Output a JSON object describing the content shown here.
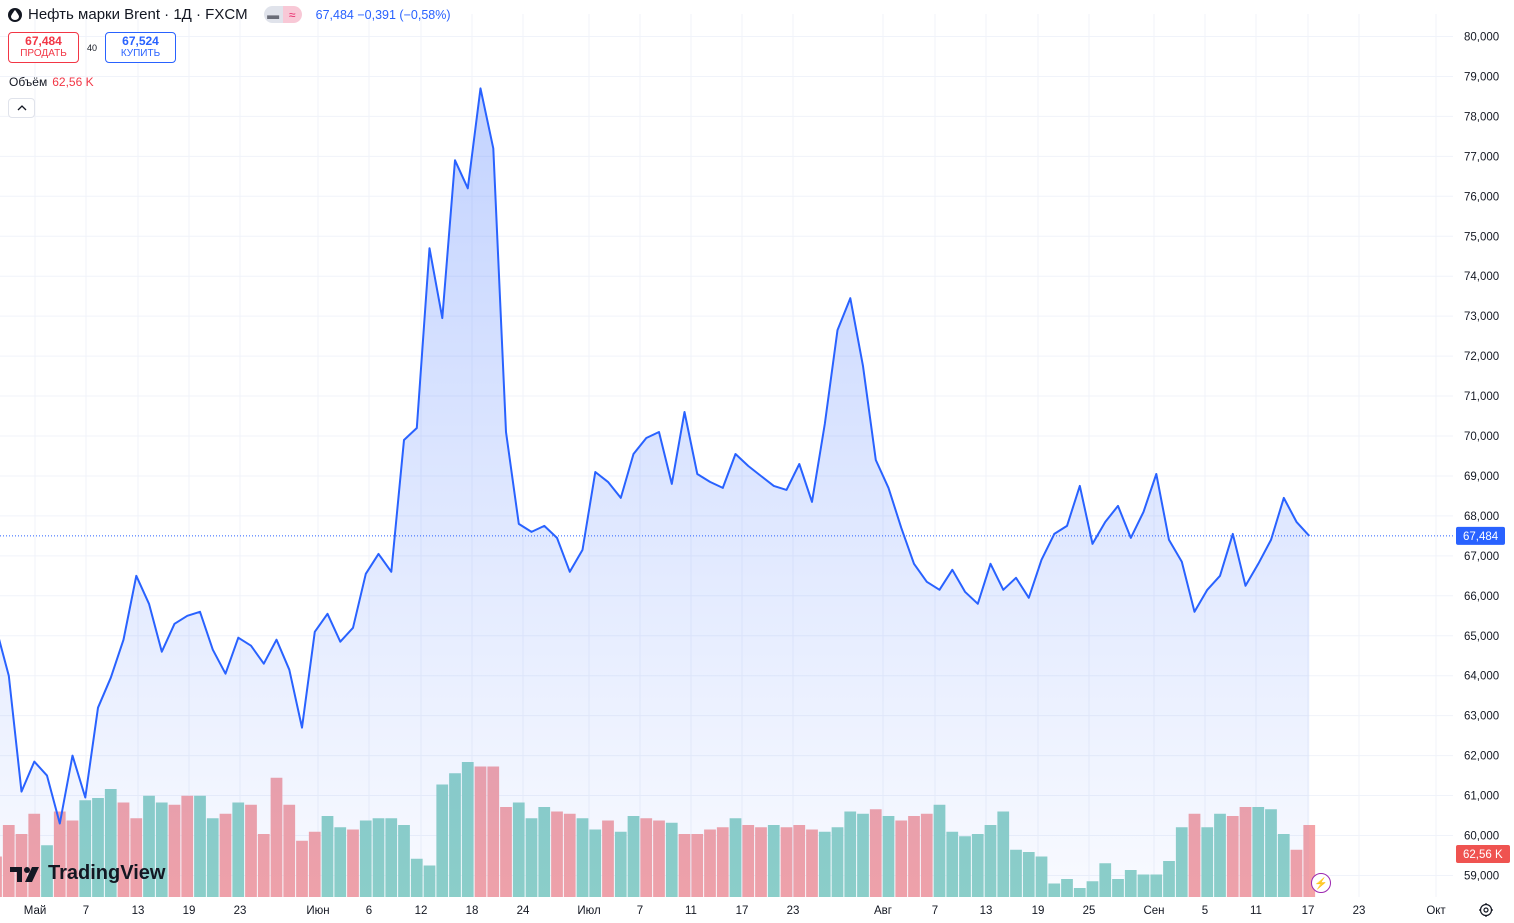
{
  "header": {
    "title": "Нефть марки Brent · 1Д · FXCM",
    "last_price": "67,484",
    "change": "−0,391 (−0,58%)",
    "icons": [
      "oil-drop-icon",
      "minus-icon",
      "approx-icon"
    ]
  },
  "trade": {
    "sell_price": "67,484",
    "sell_label": "ПРОДАТЬ",
    "spread": "40",
    "buy_price": "67,524",
    "buy_label": "КУПИТЬ"
  },
  "volume": {
    "label": "Объём",
    "value": "62,56 K"
  },
  "logo": {
    "text": "TradingView"
  },
  "colors": {
    "line": "#2962ff",
    "vol_up": "#8ed1c7",
    "vol_down": "#f4a3a7",
    "price_label_bg": "#2962ff",
    "volume_label_bg": "#ef5350"
  },
  "chart_data": {
    "type": "area",
    "title": "Нефть марки Brent · 1Д · FXCM",
    "ylim": [
      58600,
      80200
    ],
    "y_ticks": [
      "80,000",
      "79,000",
      "78,000",
      "77,000",
      "76,000",
      "75,000",
      "74,000",
      "73,000",
      "72,000",
      "71,000",
      "70,000",
      "69,000",
      "68,000",
      "67,000",
      "66,000",
      "65,000",
      "64,000",
      "63,000",
      "62,000",
      "61,000",
      "60,000",
      "59,000"
    ],
    "x_ticks": [
      "Май",
      "7",
      "13",
      "19",
      "23",
      "Июн",
      "6",
      "12",
      "18",
      "24",
      "Июл",
      "7",
      "11",
      "17",
      "23",
      "Авг",
      "7",
      "13",
      "19",
      "25",
      "Сен",
      "5",
      "11",
      "17",
      "23",
      "Окт"
    ],
    "price_label": "67,484",
    "volume_label": "62,56 K",
    "close": [
      65200,
      64000,
      61100,
      61850,
      61500,
      60300,
      62000,
      60950,
      63200,
      63950,
      64900,
      66500,
      65800,
      64600,
      65300,
      65500,
      65600,
      64650,
      64050,
      64950,
      64750,
      64300,
      64900,
      64150,
      62700,
      65100,
      65550,
      64850,
      65200,
      66550,
      67050,
      66600,
      69900,
      70200,
      74700,
      72950,
      76900,
      76200,
      78700,
      77200,
      70100,
      67800,
      67600,
      67750,
      67450,
      66600,
      67150,
      69100,
      68850,
      68450,
      69550,
      69950,
      70100,
      68800,
      70600,
      69050,
      68850,
      68700,
      69550,
      69250,
      69000,
      68750,
      68650,
      69300,
      68350,
      70300,
      72650,
      73450,
      71750,
      69400,
      68700,
      67700,
      66800,
      66350,
      66150,
      66650,
      66100,
      65800,
      66800,
      66150,
      66450,
      65950,
      66900,
      67550,
      67750,
      68750,
      67300,
      67850,
      68250,
      67450,
      68100,
      69050,
      67400,
      66850,
      65600,
      66150,
      66500,
      67550,
      66250,
      66800,
      67400,
      68450,
      67850,
      67500
    ],
    "volume": [
      0.82,
      0.68,
      0.72,
      0.63,
      0.77,
      0.62,
      0.66,
      0.57,
      0.56,
      0.52,
      0.58,
      0.65,
      0.55,
      0.58,
      0.59,
      0.55,
      0.55,
      0.65,
      0.63,
      0.58,
      0.59,
      0.72,
      0.47,
      0.59,
      0.75,
      0.71,
      0.64,
      0.69,
      0.7,
      0.66,
      0.65,
      0.65,
      0.68,
      0.83,
      0.86,
      0.5,
      0.45,
      0.4,
      0.42,
      0.42,
      0.6,
      0.58,
      0.65,
      0.6,
      0.62,
      0.63,
      0.65,
      0.7,
      0.66,
      0.71,
      0.64,
      0.65,
      0.66,
      0.67,
      0.72,
      0.72,
      0.7,
      0.69,
      0.65,
      0.68,
      0.69,
      0.68,
      0.69,
      0.68,
      0.7,
      0.71,
      0.69,
      0.62,
      0.63,
      0.61,
      0.64,
      0.66,
      0.64,
      0.63,
      0.59,
      0.71,
      0.73,
      0.72,
      0.68,
      0.62,
      0.79,
      0.8,
      0.82,
      0.94,
      0.92,
      0.96,
      0.93,
      0.85,
      0.92,
      0.88,
      0.9,
      0.9,
      0.84,
      0.69,
      0.63,
      0.69,
      0.63,
      0.64,
      0.6,
      0.6,
      0.61,
      0.72,
      0.79,
      0.68
    ],
    "volume_dir": [
      "down",
      "down",
      "down",
      "down",
      "up",
      "down",
      "down",
      "up",
      "up",
      "up",
      "down",
      "down",
      "up",
      "up",
      "down",
      "down",
      "up",
      "up",
      "down",
      "up",
      "down",
      "down",
      "down",
      "down",
      "down",
      "down",
      "up",
      "up",
      "down",
      "up",
      "up",
      "up",
      "up",
      "up",
      "up",
      "up",
      "up",
      "up",
      "down",
      "down",
      "down",
      "up",
      "up",
      "up",
      "down",
      "down",
      "up",
      "up",
      "down",
      "up",
      "up",
      "down",
      "down",
      "up",
      "down",
      "down",
      "down",
      "down",
      "up",
      "down",
      "down",
      "up",
      "down",
      "down",
      "down",
      "up",
      "up",
      "up",
      "up",
      "down",
      "up",
      "down",
      "down",
      "down",
      "up",
      "up",
      "up",
      "up",
      "up",
      "up",
      "up",
      "up",
      "up",
      "up",
      "up",
      "up",
      "up",
      "up",
      "up",
      "up",
      "up",
      "up",
      "up",
      "up",
      "down",
      "up",
      "up",
      "down",
      "down",
      "up",
      "up",
      "up",
      "down",
      "down"
    ]
  }
}
